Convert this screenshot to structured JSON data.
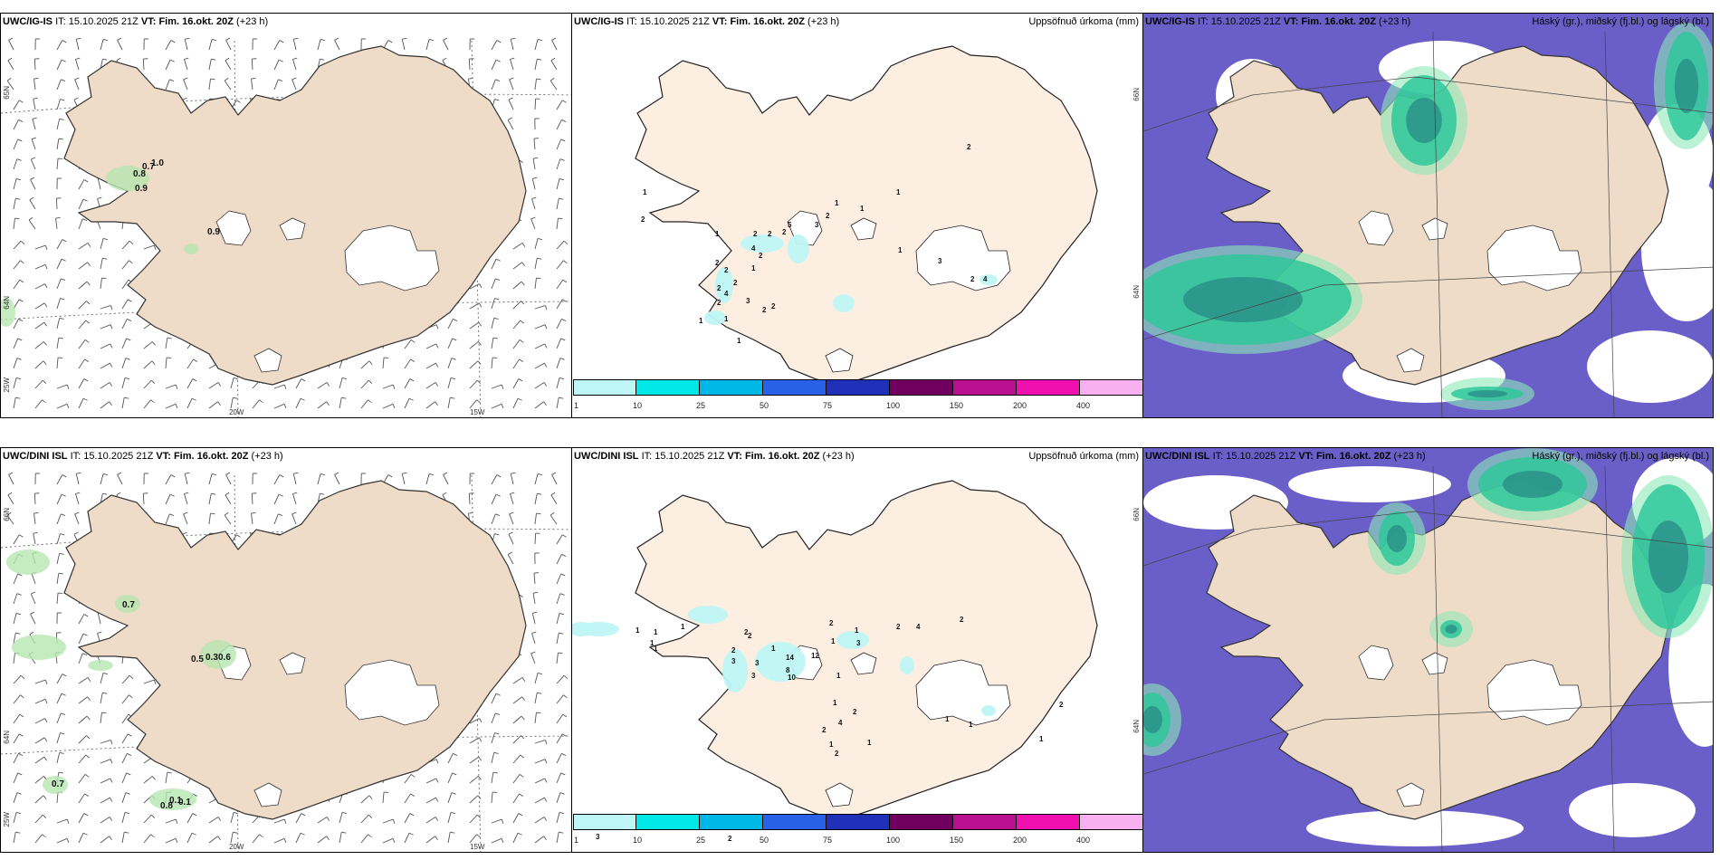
{
  "panels": {
    "top_left": {
      "model": "UWC/IG-IS",
      "it_label": "IT:",
      "it": "15.10.2025 21Z",
      "vt_label": "VT:",
      "vt": "Fim. 16.okt. 20Z",
      "lead": "(+23 h)",
      "right": ""
    },
    "top_mid": {
      "model": "UWC/IG-IS",
      "it_label": "IT:",
      "it": "15.10.2025 21Z",
      "vt_label": "VT:",
      "vt": "Fim. 16.okt. 20Z",
      "lead": "(+23 h)",
      "right": "Uppsöfnuð úrkoma (mm)"
    },
    "top_right": {
      "model": "UWC/IG-IS",
      "it_label": "IT:",
      "it": "15.10.2025 21Z",
      "vt_label": "VT:",
      "vt": "Fim. 16.okt. 20Z",
      "lead": "(+23 h)",
      "right": "Háský (gr.), miðský (fj.bl.) og lágský (bl.)"
    },
    "bot_left": {
      "model": "UWC/DINI ISL",
      "it_label": "IT:",
      "it": "15.10.2025 21Z",
      "vt_label": "VT:",
      "vt": "Fim. 16.okt. 20Z",
      "lead": "(+23 h)",
      "right": ""
    },
    "bot_mid": {
      "model": "UWC/DINI ISL",
      "it_label": "IT:",
      "it": "15.10.2025 21Z",
      "vt_label": "VT:",
      "vt": "Fim. 16.okt. 20Z",
      "lead": "(+23 h)",
      "right": "Uppsöfnuð úrkoma (mm)"
    },
    "bot_right": {
      "model": "UWC/DINI ISL",
      "it_label": "IT:",
      "it": "15.10.2025 21Z",
      "vt_label": "VT:",
      "vt": "Fim. 16.okt. 20Z",
      "lead": "(+23 h)",
      "right": "Háský (gr.), miðský (fj.bl.) og lágský (bl.)"
    }
  },
  "axes": {
    "lon_20w": "20W",
    "lon_15w": "15W",
    "lat_65n": "65N",
    "lat_64n": "64N",
    "lat_66n": "66N",
    "lon_25w": "25W"
  },
  "colorbar": {
    "labels": [
      "1",
      "10",
      "25",
      "50",
      "75",
      "100",
      "150",
      "200",
      "400"
    ],
    "colors": [
      "#bff6f6",
      "#00e8e8",
      "#00b8e8",
      "#2860e8",
      "#2030b8",
      "#700060",
      "#b8108f",
      "#f010b0",
      "#f8b0f0"
    ]
  },
  "labels": {
    "top_left": [
      "0.7",
      "1.0",
      "0.8",
      "0.9",
      "0.9"
    ],
    "bot_left": [
      "0.7",
      "0.5",
      "0.3",
      "0.6",
      "0.7",
      "0.1",
      "0.8",
      "0.1"
    ],
    "top_mid": [
      "1",
      "2",
      "1",
      "2",
      "2",
      "2",
      "5",
      "3",
      "4",
      "2",
      "2",
      "2",
      "1",
      "2",
      "4",
      "2",
      "3",
      "2",
      "2",
      "1",
      "1",
      "1",
      "2",
      "1",
      "1",
      "2",
      "3",
      "2",
      "4",
      "1",
      "2",
      "1"
    ],
    "bot_mid": [
      "1",
      "1",
      "1",
      "1",
      "2",
      "3",
      "1",
      "2",
      "3",
      "1",
      "2",
      "3",
      "14",
      "8",
      "10",
      "12",
      "2",
      "1",
      "1",
      "3",
      "1",
      "1",
      "2",
      "4",
      "2",
      "1",
      "2",
      "1",
      "2",
      "4",
      "2",
      "1",
      "1",
      "2",
      "1",
      "3",
      "2"
    ]
  },
  "colors": {
    "land": "#efdcc8",
    "land_mid": "#fdeee2",
    "sea_cloud": "#6a5fc8",
    "cloud_green": "#2fc89a",
    "precip_green": "#b6e6b0"
  }
}
